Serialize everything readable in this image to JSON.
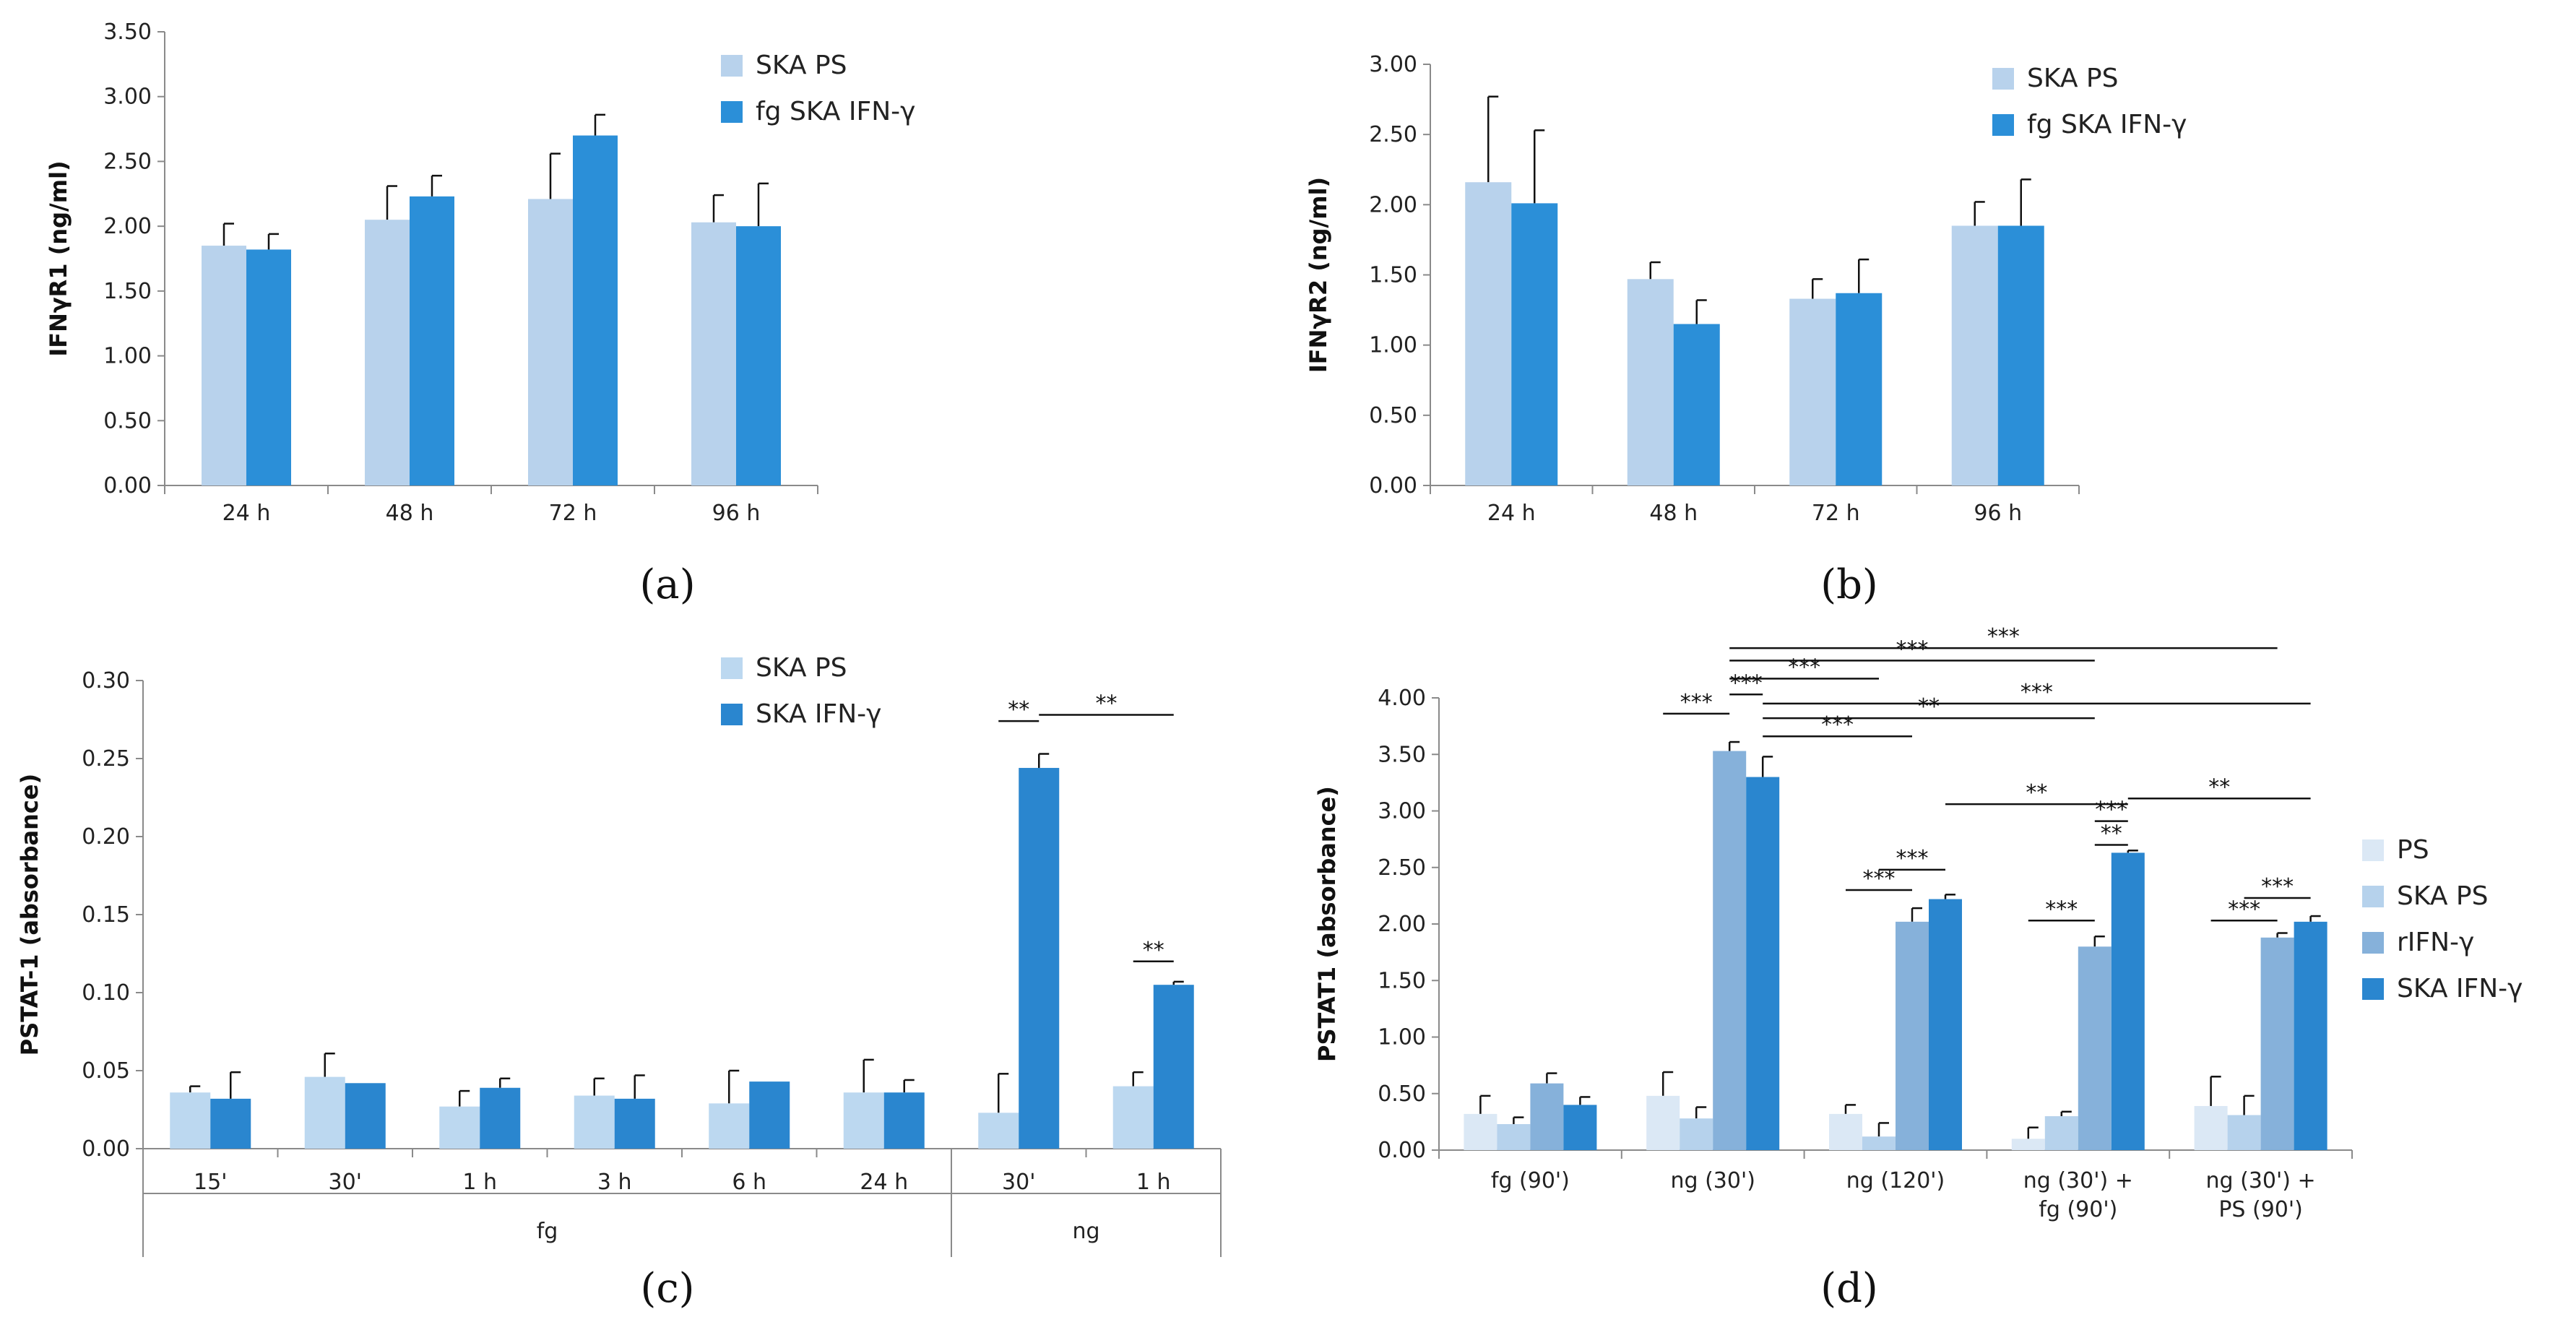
{
  "chart_data": [
    {
      "type": "bar",
      "panel_label": "(a)",
      "ylabel": "IFNγR1 (ng/ml)",
      "ylim": [
        0,
        3.5
      ],
      "yticks": [
        "0.00",
        "0.50",
        "1.00",
        "1.50",
        "2.00",
        "2.50",
        "3.00",
        "3.50"
      ],
      "categories": [
        "24 h",
        "48 h",
        "72 h",
        "96 h"
      ],
      "legend_position": "top-right",
      "series": [
        {
          "name": "SKA PS",
          "color": "#b8d2ec",
          "values": [
            1.85,
            2.05,
            2.21,
            2.03
          ],
          "errors": [
            0.17,
            0.26,
            0.35,
            0.21
          ]
        },
        {
          "name": "fg SKA IFN-γ",
          "color": "#2b8fd8",
          "values": [
            1.82,
            2.23,
            2.7,
            2.0
          ],
          "errors": [
            0.12,
            0.16,
            0.16,
            0.33
          ]
        }
      ]
    },
    {
      "type": "bar",
      "panel_label": "(b)",
      "ylabel": "IFNγR2 (ng/ml)",
      "ylim": [
        0,
        3.0
      ],
      "yticks": [
        "0.00",
        "0.50",
        "1.00",
        "1.50",
        "2.00",
        "2.50",
        "3.00"
      ],
      "categories": [
        "24 h",
        "48 h",
        "72 h",
        "96 h"
      ],
      "legend_position": "top-right",
      "series": [
        {
          "name": "SKA PS",
          "color": "#b8d2ec",
          "values": [
            2.16,
            1.47,
            1.33,
            1.85
          ],
          "errors": [
            0.61,
            0.12,
            0.14,
            0.17
          ]
        },
        {
          "name": "fg SKA IFN-γ",
          "color": "#2b8fd8",
          "values": [
            2.01,
            1.15,
            1.37,
            1.85
          ],
          "errors": [
            0.52,
            0.17,
            0.24,
            0.33
          ]
        }
      ]
    },
    {
      "type": "bar",
      "panel_label": "(c)",
      "ylabel": "PSTAT-1 (absorbance)",
      "ylim": [
        0,
        0.3
      ],
      "yticks": [
        "0.00",
        "0.05",
        "0.10",
        "0.15",
        "0.20",
        "0.25",
        "0.30"
      ],
      "categories": [
        "15'",
        "30'",
        "1 h",
        "3 h",
        "6 h",
        "24 h",
        "30'",
        "1 h"
      ],
      "groups": [
        {
          "label": "fg",
          "count": 6
        },
        {
          "label": "ng",
          "count": 2
        }
      ],
      "legend_position": "top-right",
      "series": [
        {
          "name": "SKA PS",
          "color": "#bcd8f0",
          "values": [
            0.036,
            0.046,
            0.027,
            0.034,
            0.029,
            0.036,
            0.023,
            0.04
          ],
          "errors": [
            0.004,
            0.015,
            0.01,
            0.011,
            0.021,
            0.021,
            0.025,
            0.009
          ]
        },
        {
          "name": "SKA IFN-γ",
          "color": "#2a86cf",
          "values": [
            0.032,
            0.042,
            0.039,
            0.032,
            0.043,
            0.036,
            0.244,
            0.105
          ],
          "errors": [
            0.017,
            0.0,
            0.006,
            0.015,
            0.0,
            0.008,
            0.009,
            0.002
          ]
        }
      ],
      "significance": [
        {
          "label": "**",
          "x1": [
            6,
            0
          ],
          "x2": [
            6,
            1
          ],
          "y": 0.274
        },
        {
          "label": "**",
          "x1": [
            6,
            1
          ],
          "x2": [
            7,
            1
          ],
          "y": 0.278
        },
        {
          "label": "**",
          "x1": [
            7,
            0
          ],
          "x2": [
            7,
            1
          ],
          "y": 0.12
        }
      ]
    },
    {
      "type": "bar",
      "panel_label": "(d)",
      "ylabel": "PSTAT1 (absorbance)",
      "ylim": [
        0,
        4.0
      ],
      "yticks": [
        "0.00",
        "0.50",
        "1.00",
        "1.50",
        "2.00",
        "2.50",
        "3.00",
        "3.50",
        "4.00"
      ],
      "categories": [
        "fg (90')",
        "ng (30')",
        "ng (120')",
        "ng (30') +\nfg (90')",
        "ng (30') +\nPS (90')"
      ],
      "legend_position": "right",
      "series": [
        {
          "name": "PS",
          "color": "#dbe8f5",
          "values": [
            0.32,
            0.48,
            0.32,
            0.1,
            0.39
          ],
          "errors": [
            0.16,
            0.21,
            0.08,
            0.1,
            0.26
          ]
        },
        {
          "name": "SKA PS",
          "color": "#b6d2ec",
          "values": [
            0.23,
            0.28,
            0.12,
            0.3,
            0.31
          ],
          "errors": [
            0.06,
            0.1,
            0.12,
            0.04,
            0.17
          ]
        },
        {
          "name": "rIFN-γ",
          "color": "#86b1da",
          "values": [
            0.59,
            3.53,
            2.02,
            1.8,
            1.88
          ],
          "errors": [
            0.09,
            0.08,
            0.12,
            0.09,
            0.04
          ]
        },
        {
          "name": "SKA IFN-γ",
          "color": "#2a86cf",
          "values": [
            0.4,
            3.3,
            2.22,
            2.63,
            2.02
          ],
          "errors": [
            0.07,
            0.18,
            0.04,
            0.02,
            0.05
          ]
        }
      ],
      "significance": [
        {
          "label": "***",
          "x1": [
            1,
            2
          ],
          "x2": [
            4,
            2
          ],
          "y": 4.44
        },
        {
          "label": "***",
          "x1": [
            1,
            2
          ],
          "x2": [
            3,
            2
          ],
          "y": 4.33
        },
        {
          "label": "***",
          "x1": [
            1,
            2
          ],
          "x2": [
            2,
            1
          ],
          "y": 4.17
        },
        {
          "label": "***",
          "x1": [
            1,
            2
          ],
          "x2": [
            1,
            3
          ],
          "y": 4.03
        },
        {
          "label": "***",
          "x1": [
            1,
            0
          ],
          "x2": [
            1,
            2
          ],
          "y": 3.86
        },
        {
          "label": "***",
          "x1": [
            1,
            3
          ],
          "x2": [
            4,
            3
          ],
          "y": 3.95
        },
        {
          "label": "**",
          "x1": [
            1,
            3
          ],
          "x2": [
            3,
            2
          ],
          "y": 3.82
        },
        {
          "label": "***",
          "x1": [
            1,
            3
          ],
          "x2": [
            2,
            2
          ],
          "y": 3.66
        },
        {
          "label": "**",
          "x1": [
            2,
            3
          ],
          "x2": [
            3,
            3
          ],
          "y": 3.06
        },
        {
          "label": "***",
          "x1": [
            3,
            2
          ],
          "x2": [
            3,
            3
          ],
          "y": 2.91
        },
        {
          "label": "**",
          "x1": [
            3,
            3
          ],
          "x2": [
            4,
            3
          ],
          "y": 3.11
        },
        {
          "label": "**",
          "x1": [
            3,
            2
          ],
          "x2": [
            3,
            3
          ],
          "y": 2.7
        },
        {
          "label": "***",
          "x1": [
            2,
            1
          ],
          "x2": [
            2,
            3
          ],
          "y": 2.48
        },
        {
          "label": "***",
          "x1": [
            2,
            0
          ],
          "x2": [
            2,
            2
          ],
          "y": 2.3
        },
        {
          "label": "***",
          "x1": [
            3,
            0
          ],
          "x2": [
            3,
            2
          ],
          "y": 2.03
        },
        {
          "label": "***",
          "x1": [
            4,
            1
          ],
          "x2": [
            4,
            3
          ],
          "y": 2.23
        },
        {
          "label": "***",
          "x1": [
            4,
            0
          ],
          "x2": [
            4,
            2
          ],
          "y": 2.03
        }
      ]
    }
  ]
}
